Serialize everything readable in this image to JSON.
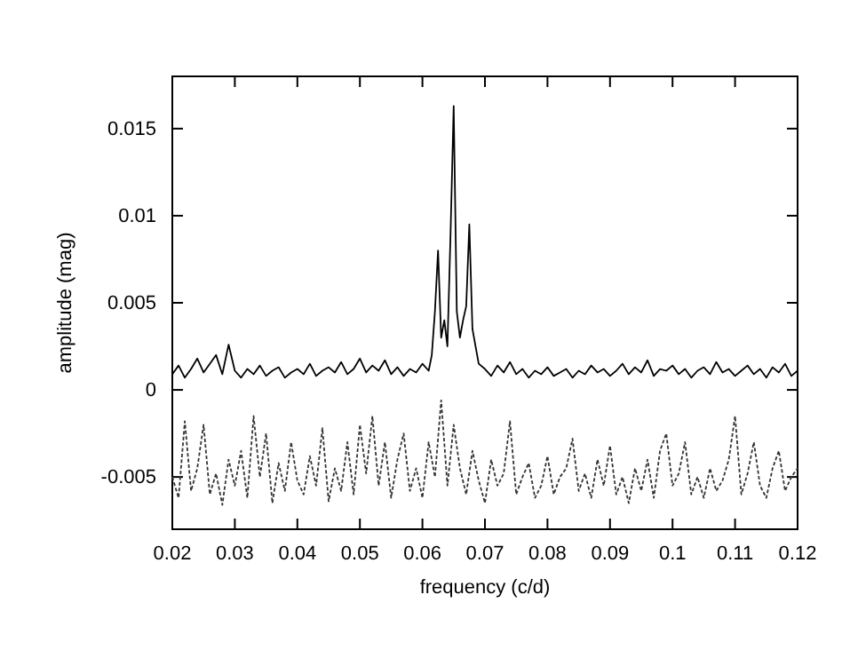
{
  "chart_data": {
    "type": "line",
    "xlabel": "frequency (c/d)",
    "ylabel": "amplitude (mag)",
    "xlim": [
      0.02,
      0.12
    ],
    "ylim": [
      -0.008,
      0.018
    ],
    "xticks": [
      0.02,
      0.03,
      0.04,
      0.05,
      0.06,
      0.07,
      0.08,
      0.09,
      0.1,
      0.11,
      0.12
    ],
    "yticks": [
      -0.005,
      0,
      0.005,
      0.01,
      0.015
    ],
    "marker": "none",
    "series": [
      {
        "color": "#000000",
        "line_style": "solid",
        "x": [
          0.02,
          0.021,
          0.022,
          0.023,
          0.024,
          0.025,
          0.026,
          0.027,
          0.028,
          0.029,
          0.03,
          0.031,
          0.032,
          0.033,
          0.034,
          0.035,
          0.036,
          0.037,
          0.038,
          0.039,
          0.04,
          0.041,
          0.042,
          0.043,
          0.044,
          0.045,
          0.046,
          0.047,
          0.048,
          0.049,
          0.05,
          0.051,
          0.052,
          0.053,
          0.054,
          0.055,
          0.056,
          0.057,
          0.058,
          0.059,
          0.06,
          0.061,
          0.0615,
          0.062,
          0.0625,
          0.063,
          0.0635,
          0.064,
          0.0645,
          0.065,
          0.0655,
          0.066,
          0.0665,
          0.067,
          0.0675,
          0.068,
          0.0685,
          0.069,
          0.07,
          0.071,
          0.072,
          0.073,
          0.074,
          0.075,
          0.076,
          0.077,
          0.078,
          0.079,
          0.08,
          0.081,
          0.082,
          0.083,
          0.084,
          0.085,
          0.086,
          0.087,
          0.088,
          0.089,
          0.09,
          0.091,
          0.092,
          0.093,
          0.094,
          0.095,
          0.096,
          0.097,
          0.098,
          0.099,
          0.1,
          0.101,
          0.102,
          0.103,
          0.104,
          0.105,
          0.106,
          0.107,
          0.108,
          0.109,
          0.11,
          0.111,
          0.112,
          0.113,
          0.114,
          0.115,
          0.116,
          0.117,
          0.118,
          0.119,
          0.12
        ],
        "values": [
          0.0009,
          0.0014,
          0.0007,
          0.0012,
          0.0018,
          0.001,
          0.0015,
          0.002,
          0.0009,
          0.0026,
          0.0011,
          0.0007,
          0.0012,
          0.0009,
          0.0014,
          0.0008,
          0.0011,
          0.0013,
          0.0007,
          0.001,
          0.0012,
          0.0009,
          0.0015,
          0.0008,
          0.0011,
          0.0013,
          0.001,
          0.0016,
          0.0009,
          0.0012,
          0.0018,
          0.001,
          0.0014,
          0.0011,
          0.0017,
          0.0009,
          0.0013,
          0.0008,
          0.0012,
          0.001,
          0.0015,
          0.0011,
          0.002,
          0.0045,
          0.008,
          0.003,
          0.004,
          0.0025,
          0.009,
          0.0163,
          0.0045,
          0.003,
          0.004,
          0.0048,
          0.0095,
          0.0035,
          0.0025,
          0.0015,
          0.0012,
          0.0008,
          0.0014,
          0.001,
          0.0016,
          0.0009,
          0.0012,
          0.0007,
          0.0011,
          0.0009,
          0.0013,
          0.0008,
          0.001,
          0.0012,
          0.0007,
          0.0011,
          0.0009,
          0.0014,
          0.001,
          0.0012,
          0.0008,
          0.0011,
          0.0015,
          0.0009,
          0.0013,
          0.001,
          0.0017,
          0.0008,
          0.0012,
          0.0011,
          0.0014,
          0.0009,
          0.0012,
          0.0007,
          0.0011,
          0.0013,
          0.0009,
          0.0016,
          0.001,
          0.0012,
          0.0008,
          0.0011,
          0.0014,
          0.0009,
          0.0012,
          0.0007,
          0.0013,
          0.001,
          0.0015,
          0.0008,
          0.0011
        ]
      },
      {
        "color": "#333333",
        "line_style": "dashed",
        "x": [
          0.02,
          0.021,
          0.022,
          0.023,
          0.024,
          0.025,
          0.026,
          0.027,
          0.028,
          0.029,
          0.03,
          0.031,
          0.032,
          0.033,
          0.034,
          0.035,
          0.036,
          0.037,
          0.038,
          0.039,
          0.04,
          0.041,
          0.042,
          0.043,
          0.044,
          0.045,
          0.046,
          0.047,
          0.048,
          0.049,
          0.05,
          0.051,
          0.052,
          0.053,
          0.054,
          0.055,
          0.056,
          0.057,
          0.058,
          0.059,
          0.06,
          0.061,
          0.062,
          0.063,
          0.064,
          0.065,
          0.066,
          0.067,
          0.068,
          0.069,
          0.07,
          0.071,
          0.072,
          0.073,
          0.074,
          0.075,
          0.076,
          0.077,
          0.078,
          0.079,
          0.08,
          0.081,
          0.082,
          0.083,
          0.084,
          0.085,
          0.086,
          0.087,
          0.088,
          0.089,
          0.09,
          0.091,
          0.092,
          0.093,
          0.094,
          0.095,
          0.096,
          0.097,
          0.098,
          0.099,
          0.1,
          0.101,
          0.102,
          0.103,
          0.104,
          0.105,
          0.106,
          0.107,
          0.108,
          0.109,
          0.11,
          0.111,
          0.112,
          0.113,
          0.114,
          0.115,
          0.116,
          0.117,
          0.118,
          0.119,
          0.12
        ],
        "values": [
          -0.005,
          -0.0062,
          -0.0018,
          -0.0058,
          -0.0045,
          -0.002,
          -0.006,
          -0.0048,
          -0.0066,
          -0.004,
          -0.0055,
          -0.0035,
          -0.0062,
          -0.0015,
          -0.005,
          -0.0025,
          -0.0065,
          -0.0042,
          -0.0058,
          -0.003,
          -0.0052,
          -0.006,
          -0.0038,
          -0.0055,
          -0.0022,
          -0.0064,
          -0.0045,
          -0.0058,
          -0.003,
          -0.006,
          -0.002,
          -0.0048,
          -0.0015,
          -0.0055,
          -0.003,
          -0.0062,
          -0.004,
          -0.0025,
          -0.0058,
          -0.0045,
          -0.0062,
          -0.003,
          -0.005,
          -0.0006,
          -0.0055,
          -0.002,
          -0.0045,
          -0.006,
          -0.0035,
          -0.0052,
          -0.0065,
          -0.004,
          -0.0055,
          -0.0048,
          -0.0018,
          -0.006,
          -0.005,
          -0.0042,
          -0.0062,
          -0.0055,
          -0.0038,
          -0.006,
          -0.005,
          -0.0045,
          -0.0028,
          -0.0058,
          -0.0048,
          -0.0062,
          -0.004,
          -0.0055,
          -0.0032,
          -0.006,
          -0.005,
          -0.0065,
          -0.0045,
          -0.0058,
          -0.004,
          -0.0062,
          -0.0035,
          -0.0025,
          -0.0055,
          -0.0048,
          -0.003,
          -0.006,
          -0.005,
          -0.0062,
          -0.0045,
          -0.0058,
          -0.0052,
          -0.004,
          -0.0015,
          -0.006,
          -0.0048,
          -0.003,
          -0.0055,
          -0.0062,
          -0.0045,
          -0.0035,
          -0.0058,
          -0.005,
          -0.0045
        ]
      }
    ]
  }
}
